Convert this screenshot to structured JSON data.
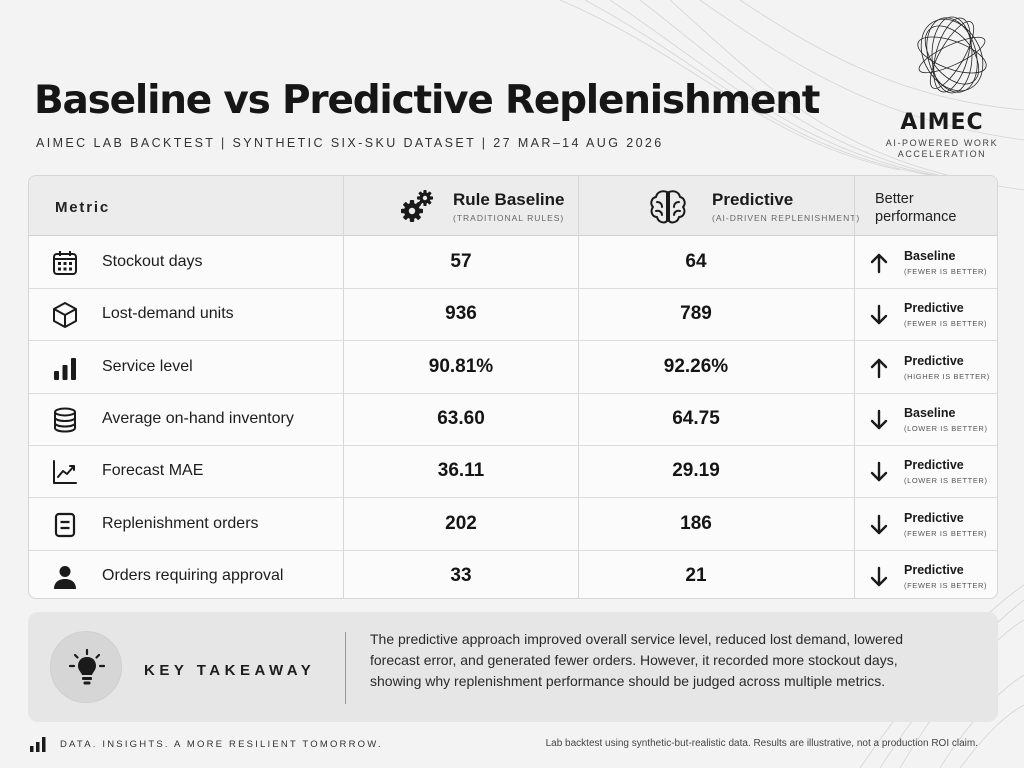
{
  "header": {
    "title": "Baseline vs Predictive Replenishment",
    "subtitle": "AIMEC LAB BACKTEST  |  SYNTHETIC SIX-SKU DATASET  |  27 MAR–14 AUG 2026"
  },
  "brand": {
    "name": "AIMEC",
    "tagline_line1": "AI-POWERED WORK",
    "tagline_line2": "ACCELERATION",
    "logo_icon": "wireframe-sphere-icon"
  },
  "table": {
    "metric_header": "Metric",
    "baseline_header": "Rule Baseline",
    "baseline_sub": "(TRADITIONAL RULES)",
    "baseline_icon": "gears-icon",
    "predictive_header": "Predictive",
    "predictive_sub": "(AI-DRIVEN REPLENISHMENT)",
    "predictive_icon": "brain-icon",
    "better_header_line1": "Better",
    "better_header_line2": "performance",
    "rows": [
      {
        "icon": "calendar-icon",
        "metric": "Stockout days",
        "baseline": "57",
        "predictive": "64",
        "direction": "up",
        "winner": "Baseline",
        "note": "(FEWER IS BETTER)"
      },
      {
        "icon": "box-icon",
        "metric": "Lost-demand units",
        "baseline": "936",
        "predictive": "789",
        "direction": "down",
        "winner": "Predictive",
        "note": "(FEWER IS BETTER)"
      },
      {
        "icon": "bar-chart-icon",
        "metric": "Service level",
        "baseline": "90.81%",
        "predictive": "92.26%",
        "direction": "up",
        "winner": "Predictive",
        "note": "(HIGHER IS BETTER)"
      },
      {
        "icon": "database-icon",
        "metric": "Average on-hand inventory",
        "baseline": "63.60",
        "predictive": "64.75",
        "direction": "down",
        "winner": "Baseline",
        "note": "(LOWER IS BETTER)"
      },
      {
        "icon": "line-chart-icon",
        "metric": "Forecast MAE",
        "baseline": "36.11",
        "predictive": "29.19",
        "direction": "down",
        "winner": "Predictive",
        "note": "(LOWER IS BETTER)"
      },
      {
        "icon": "order-form-icon",
        "metric": "Replenishment orders",
        "baseline": "202",
        "predictive": "186",
        "direction": "down",
        "winner": "Predictive",
        "note": "(FEWER IS BETTER)"
      },
      {
        "icon": "user-icon",
        "metric": "Orders requiring approval",
        "baseline": "33",
        "predictive": "21",
        "direction": "down",
        "winner": "Predictive",
        "note": "(FEWER IS BETTER)"
      }
    ]
  },
  "takeaway": {
    "label": "KEY TAKEAWAY",
    "icon": "lightbulb-icon",
    "text": "The predictive approach improved overall service level, reduced lost demand, lowered forecast error, and generated fewer orders. However, it recorded more stockout days, showing why replenishment performance should be judged across multiple metrics."
  },
  "footer": {
    "left": "DATA. INSIGHTS. A MORE RESILIENT TOMORROW.",
    "right": "Lab backtest using synthetic-but-realistic data. Results are illustrative, not a production ROI claim."
  }
}
